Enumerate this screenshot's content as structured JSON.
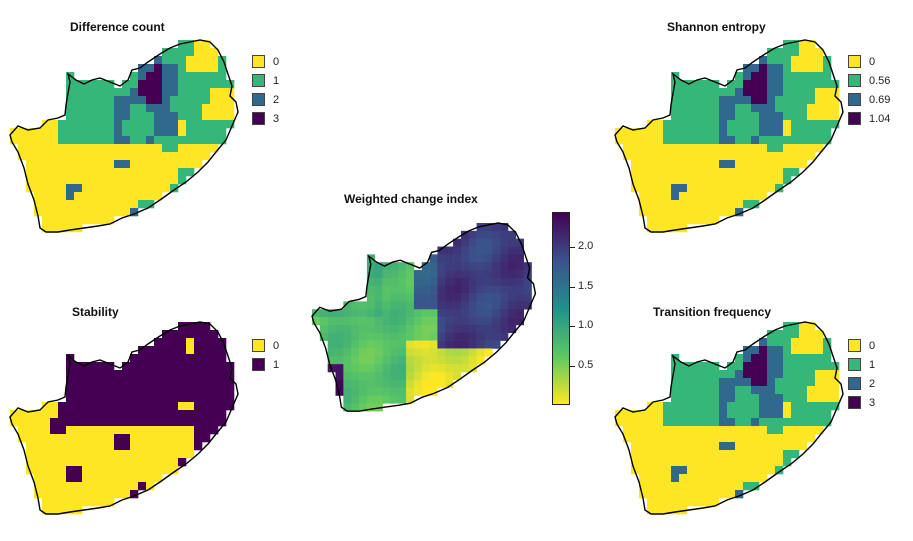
{
  "panels": [
    {
      "id": "difference",
      "title": "Difference count",
      "legend": [
        {
          "label": "0",
          "color": "#fde725"
        },
        {
          "label": "1",
          "color": "#35b779"
        },
        {
          "label": "2",
          "color": "#31688e"
        },
        {
          "label": "3",
          "color": "#440154"
        }
      ]
    },
    {
      "id": "entropy",
      "title": "Shannon entropy",
      "legend": [
        {
          "label": "0",
          "color": "#fde725"
        },
        {
          "label": "0.56",
          "color": "#35b779"
        },
        {
          "label": "0.69",
          "color": "#31688e"
        },
        {
          "label": "1.04",
          "color": "#440154"
        }
      ]
    },
    {
      "id": "weighted",
      "title": "Weighted change index",
      "colorbar": {
        "ticks": [
          "2.0",
          "1.5",
          "1.0",
          "0.5"
        ],
        "min": 0.0,
        "max": 2.45,
        "tick_values": [
          2.0,
          1.5,
          1.0,
          0.5
        ]
      }
    },
    {
      "id": "stability",
      "title": "Stability",
      "legend": [
        {
          "label": "0",
          "color": "#fde725"
        },
        {
          "label": "1",
          "color": "#440154"
        }
      ]
    },
    {
      "id": "transition",
      "title": "Transition frequency",
      "legend": [
        {
          "label": "0",
          "color": "#fde725"
        },
        {
          "label": "1",
          "color": "#35b779"
        },
        {
          "label": "2",
          "color": "#31688e"
        },
        {
          "label": "3",
          "color": "#440154"
        }
      ]
    }
  ]
}
